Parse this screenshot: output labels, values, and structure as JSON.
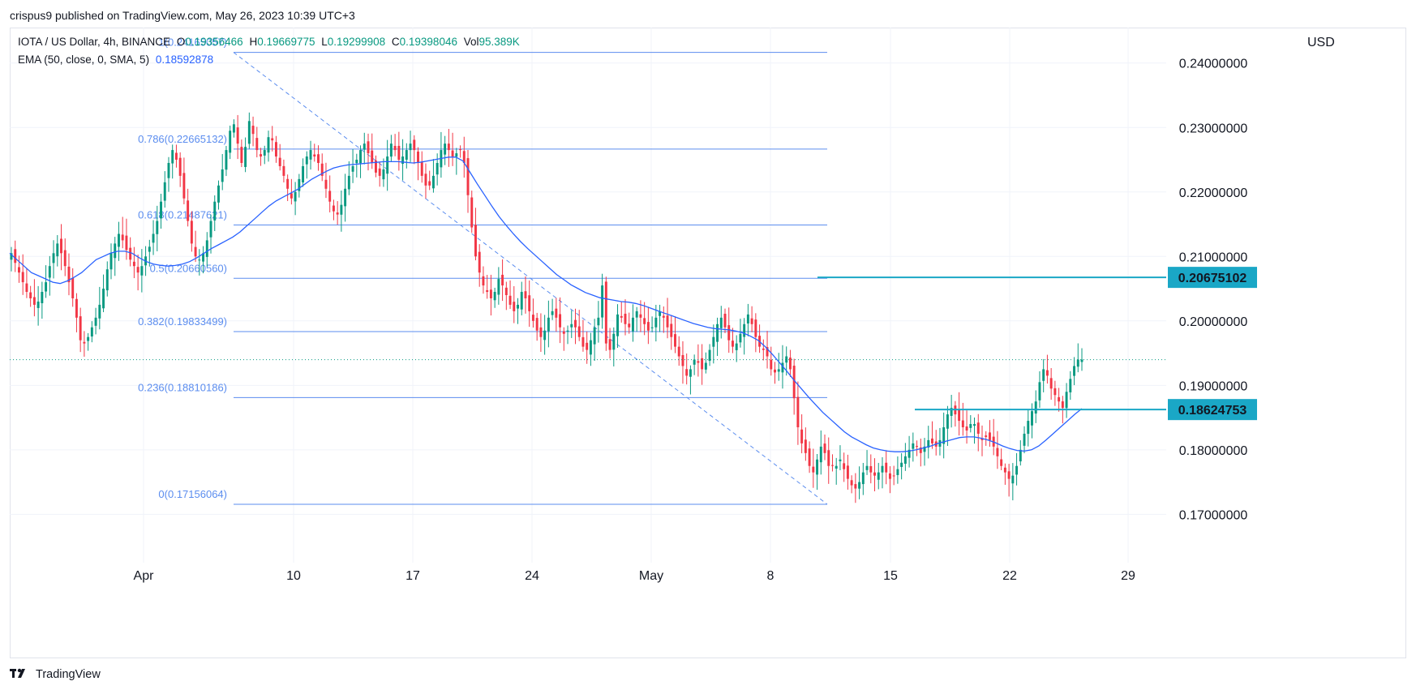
{
  "header": {
    "published_text": "crispus9 published on TradingView.com, May 26, 2023 10:39 UTC+3"
  },
  "legend": {
    "symbol": "IOTA / US Dollar, 4h, BINANCE",
    "open_label": "O",
    "open": "0.19356466",
    "high_label": "H",
    "high": "0.19669775",
    "low_label": "L",
    "low": "0.19299908",
    "close_label": "C",
    "close": "0.19398046",
    "vol_label": "Vol",
    "vol": "95.389K",
    "ema_label": "EMA (50, close, 0, SMA, 5)",
    "ema_value": "0.18592878"
  },
  "currency": "USD",
  "footer": {
    "brand": "TradingView",
    "logo_icon": "tradingview-logo-icon"
  },
  "colors": {
    "up": "#089981",
    "down": "#f23645",
    "ema": "#2962ff",
    "fib": "#5b8def",
    "level": "#1aa7c6",
    "grid": "#f0f3fa"
  },
  "chart_data": {
    "type": "candlestick",
    "instrument": "IOTA / US Dollar",
    "timeframe": "4h",
    "exchange": "BINANCE",
    "x_tick_labels": [
      "Apr",
      "10",
      "17",
      "24",
      "May",
      "8",
      "15",
      "22",
      "29"
    ],
    "y_tick_labels": [
      "0.24000000",
      "0.23000000",
      "0.22000000",
      "0.21000000",
      "0.20000000",
      "0.19000000",
      "0.18000000",
      "0.17000000"
    ],
    "y_ticks": [
      0.24,
      0.23,
      0.22,
      0.21,
      0.2,
      0.19,
      0.18,
      0.17
    ],
    "ylim": [
      0.1625,
      0.2455
    ],
    "current_price": 0.19398046,
    "fibonacci": [
      {
        "label": "1(0.24165057)",
        "value": 0.24165057
      },
      {
        "label": "0.786(0.22665132)",
        "value": 0.22665132
      },
      {
        "label": "0.618(0.21487621)",
        "value": 0.21487621
      },
      {
        "label": "0.5(0.20660560)",
        "value": 0.2066056
      },
      {
        "label": "0.382(0.19833499)",
        "value": 0.19833499
      },
      {
        "label": "0.236(0.18810186)",
        "value": 0.18810186
      },
      {
        "label": "0(0.17156064)",
        "value": 0.17156064
      }
    ],
    "horizontal_levels": [
      {
        "label": "0.20675102",
        "value": 0.20675102
      },
      {
        "label": "0.18624753",
        "value": 0.18624753
      }
    ],
    "price_path": [
      0.2105,
      0.209,
      0.2075,
      0.206,
      0.2045,
      0.2035,
      0.2025,
      0.203,
      0.2045,
      0.206,
      0.2085,
      0.2105,
      0.212,
      0.2105,
      0.2085,
      0.206,
      0.2035,
      0.2005,
      0.197,
      0.1965,
      0.1975,
      0.199,
      0.2005,
      0.2025,
      0.205,
      0.208,
      0.2105,
      0.212,
      0.2135,
      0.2125,
      0.211,
      0.2095,
      0.2085,
      0.2075,
      0.2085,
      0.21,
      0.2115,
      0.2135,
      0.2155,
      0.2185,
      0.2215,
      0.2245,
      0.2265,
      0.225,
      0.2225,
      0.219,
      0.2155,
      0.212,
      0.21,
      0.2095,
      0.2105,
      0.2125,
      0.2155,
      0.2185,
      0.221,
      0.2235,
      0.2265,
      0.2295,
      0.2305,
      0.2275,
      0.2245,
      0.227,
      0.231,
      0.229,
      0.2265,
      0.2255,
      0.2265,
      0.2285,
      0.228,
      0.2255,
      0.224,
      0.2225,
      0.2205,
      0.219,
      0.22,
      0.222,
      0.224,
      0.2255,
      0.2265,
      0.2255,
      0.2245,
      0.2225,
      0.2205,
      0.2185,
      0.217,
      0.2165,
      0.218,
      0.2205,
      0.2225,
      0.224,
      0.225,
      0.2265,
      0.2275,
      0.226,
      0.2245,
      0.223,
      0.2225,
      0.2235,
      0.2255,
      0.2275,
      0.2265,
      0.225,
      0.2255,
      0.2265,
      0.2275,
      0.2265,
      0.2245,
      0.2225,
      0.221,
      0.221,
      0.2225,
      0.2245,
      0.2265,
      0.2275,
      0.2265,
      0.2255,
      0.226,
      0.2265,
      0.2245,
      0.2195,
      0.2145,
      0.21,
      0.2075,
      0.2055,
      0.2045,
      0.2035,
      0.2045,
      0.2065,
      0.2055,
      0.204,
      0.2025,
      0.2015,
      0.2025,
      0.2045,
      0.2035,
      0.2015,
      0.2,
      0.1985,
      0.1975,
      0.1985,
      0.2005,
      0.2015,
      0.2005,
      0.199,
      0.198,
      0.1985,
      0.1995,
      0.199,
      0.1975,
      0.196,
      0.1955,
      0.197,
      0.199,
      0.2005,
      0.2055,
      0.1965,
      0.1955,
      0.198,
      0.201,
      0.2005,
      0.1995,
      0.199,
      0.2005,
      0.2015,
      0.2005,
      0.1995,
      0.1985,
      0.199,
      0.2005,
      0.2015,
      0.2005,
      0.199,
      0.1975,
      0.196,
      0.1945,
      0.193,
      0.1915,
      0.1925,
      0.194,
      0.1935,
      0.1925,
      0.1935,
      0.1955,
      0.1975,
      0.1995,
      0.2005,
      0.199,
      0.197,
      0.196,
      0.1965,
      0.198,
      0.1995,
      0.201,
      0.1995,
      0.1975,
      0.196,
      0.1955,
      0.1945,
      0.1925,
      0.192,
      0.1925,
      0.1935,
      0.1945,
      0.1925,
      0.188,
      0.1835,
      0.181,
      0.1795,
      0.1775,
      0.1765,
      0.1785,
      0.1805,
      0.1795,
      0.1775,
      0.1775,
      0.1775,
      0.1785,
      0.177,
      0.1755,
      0.1745,
      0.174,
      0.175,
      0.1765,
      0.1775,
      0.1765,
      0.176,
      0.1765,
      0.1775,
      0.1765,
      0.1755,
      0.176,
      0.177,
      0.178,
      0.179,
      0.18,
      0.181,
      0.1805,
      0.1795,
      0.1805,
      0.1815,
      0.181,
      0.1805,
      0.1815,
      0.1835,
      0.1855,
      0.1865,
      0.1855,
      0.1845,
      0.1835,
      0.183,
      0.184,
      0.184,
      0.1825,
      0.1815,
      0.182,
      0.1815,
      0.1805,
      0.179,
      0.1775,
      0.1765,
      0.1755,
      0.176,
      0.1775,
      0.18,
      0.1825,
      0.1845,
      0.186,
      0.1875,
      0.1905,
      0.1925,
      0.1915,
      0.1895,
      0.1885,
      0.1875,
      0.1865,
      0.189,
      0.191,
      0.193,
      0.194,
      0.194
    ],
    "ema_path": [
      0.2105,
      0.2095,
      0.2085,
      0.2075,
      0.207,
      0.2065,
      0.206,
      0.2058,
      0.2062,
      0.2068,
      0.2075,
      0.2085,
      0.2095,
      0.21,
      0.2105,
      0.2108,
      0.2108,
      0.2105,
      0.2098,
      0.2092,
      0.2088,
      0.2086,
      0.2085,
      0.2086,
      0.2088,
      0.2092,
      0.2098,
      0.2105,
      0.2112,
      0.2118,
      0.2124,
      0.213,
      0.2138,
      0.2148,
      0.2158,
      0.2168,
      0.2178,
      0.2186,
      0.2192,
      0.2198,
      0.2204,
      0.2212,
      0.222,
      0.2226,
      0.2232,
      0.2237,
      0.224,
      0.2242,
      0.2243,
      0.2244,
      0.2245,
      0.2246,
      0.2247,
      0.2247,
      0.2247,
      0.2246,
      0.2245,
      0.2246,
      0.2248,
      0.225,
      0.2252,
      0.2254,
      0.2254,
      0.2248,
      0.223,
      0.2212,
      0.2195,
      0.2178,
      0.2162,
      0.2148,
      0.2135,
      0.2123,
      0.2112,
      0.2102,
      0.2092,
      0.2082,
      0.2072,
      0.2064,
      0.2056,
      0.205,
      0.2044,
      0.204,
      0.2036,
      0.2034,
      0.2032,
      0.203,
      0.2029,
      0.2027,
      0.2024,
      0.202,
      0.2016,
      0.2012,
      0.2008,
      0.2004,
      0.2,
      0.1996,
      0.1993,
      0.199,
      0.1988,
      0.1987,
      0.1986,
      0.1984,
      0.1981,
      0.1976,
      0.197,
      0.196,
      0.1948,
      0.1935,
      0.1922,
      0.1908,
      0.1895,
      0.1882,
      0.187,
      0.1858,
      0.1848,
      0.1838,
      0.1828,
      0.182,
      0.1814,
      0.1808,
      0.1803,
      0.18,
      0.1798,
      0.1797,
      0.1797,
      0.1798,
      0.18,
      0.1803,
      0.1806,
      0.181,
      0.1813,
      0.1816,
      0.1819,
      0.182,
      0.182,
      0.1818,
      0.1815,
      0.1811,
      0.1806,
      0.1802,
      0.1799,
      0.1798,
      0.18,
      0.1806,
      0.1815,
      0.1825,
      0.1835,
      0.1845,
      0.1855,
      0.1864
    ]
  }
}
